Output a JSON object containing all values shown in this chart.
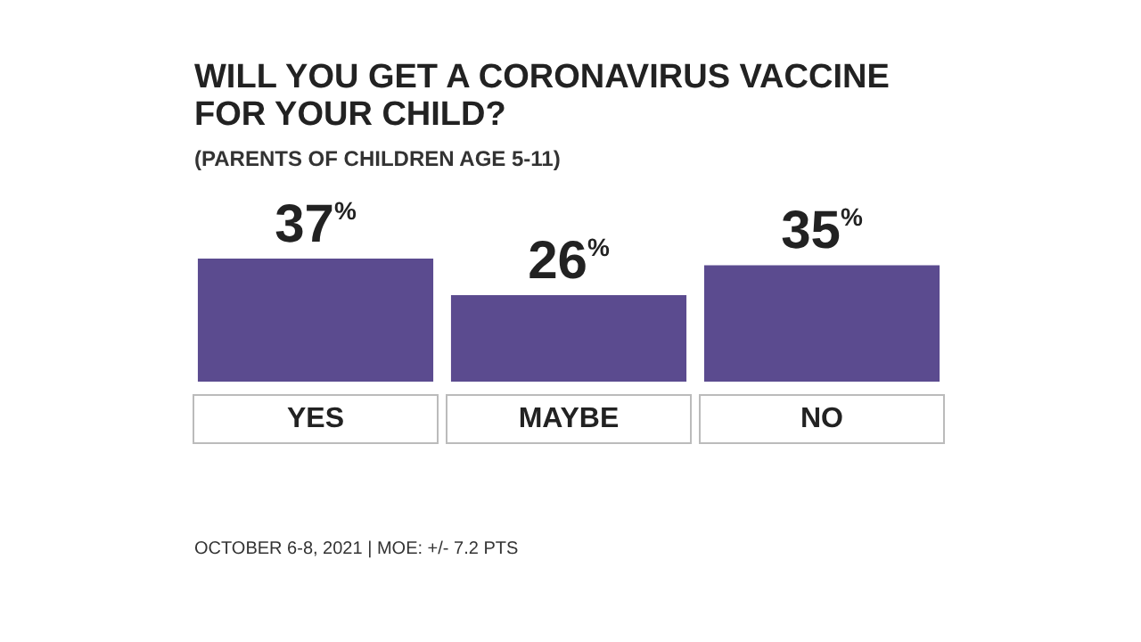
{
  "chart_data": {
    "type": "bar",
    "title": "WILL YOU GET A CORONAVIRUS VACCINE FOR YOUR CHILD?",
    "subtitle": "(PARENTS OF CHILDREN AGE 5-11)",
    "categories": [
      "YES",
      "MAYBE",
      "NO"
    ],
    "values": [
      37,
      26,
      35
    ],
    "value_labels": [
      "37%",
      "26%",
      "35%"
    ],
    "color": "#5b4b8f",
    "annotations": [
      "OCTOBER 6-8, 2021 | MOE: +/- 7.2 PTS"
    ]
  }
}
